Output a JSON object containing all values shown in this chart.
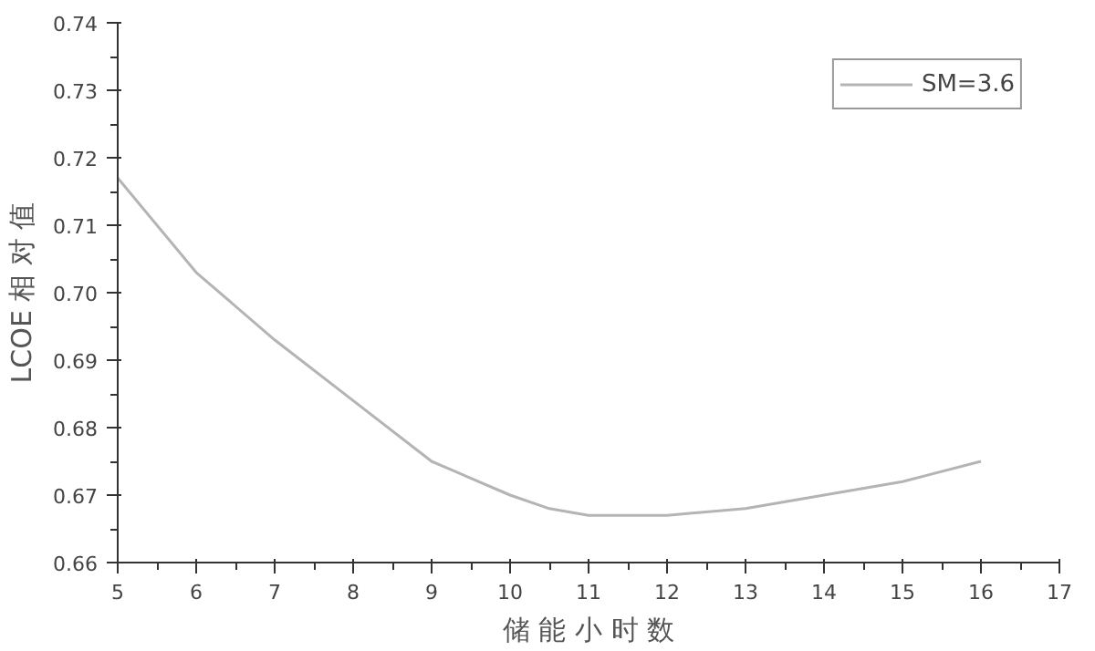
{
  "chart_data": {
    "type": "line",
    "xlabel": "储 能 小 时 数",
    "ylabel": "LCOE 相 对 值",
    "x": [
      5,
      6,
      7,
      8,
      9,
      10,
      10.5,
      11,
      12,
      13,
      14,
      15,
      16
    ],
    "series": [
      {
        "name": "SM=3.6",
        "color": "#b4b4b4",
        "values": [
          0.717,
          0.703,
          0.693,
          0.684,
          0.675,
          0.67,
          0.668,
          0.667,
          0.667,
          0.668,
          0.67,
          0.672,
          0.675
        ]
      }
    ],
    "xlim": [
      5,
      17
    ],
    "xticks": [
      5,
      6,
      7,
      8,
      9,
      10,
      11,
      12,
      13,
      14,
      15,
      16,
      17
    ],
    "ylim": [
      0.66,
      0.74
    ],
    "yticks": [
      {
        "value": 0.66,
        "label": "0.66"
      },
      {
        "value": 0.67,
        "label": "0.67"
      },
      {
        "value": 0.68,
        "label": "0.68"
      },
      {
        "value": 0.69,
        "label": "0.69"
      },
      {
        "value": 0.7,
        "label": "0.70"
      },
      {
        "value": 0.71,
        "label": "0.71"
      },
      {
        "value": 0.72,
        "label": "0.72"
      },
      {
        "value": 0.73,
        "label": "0.73"
      },
      {
        "value": 0.74,
        "label": "0.74"
      }
    ],
    "grid": false,
    "legend": "top right",
    "marker": "none",
    "line_style": "solid"
  }
}
